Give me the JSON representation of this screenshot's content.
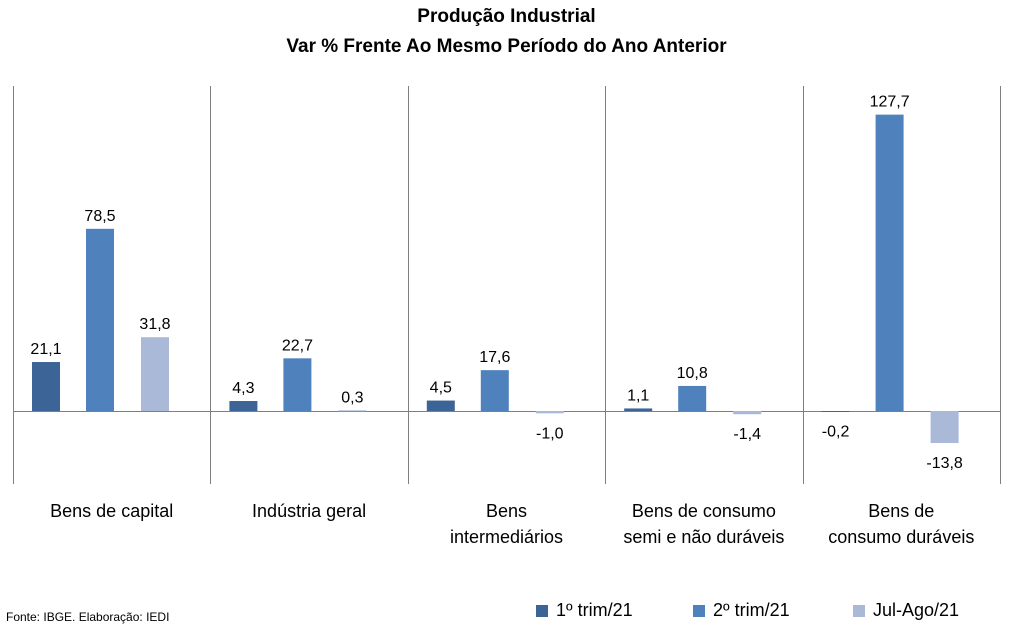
{
  "chart_data": {
    "type": "bar",
    "title": "Produção Industrial",
    "subtitle": "Var % Frente Ao Mesmo Período do Ano Anterior",
    "categories": [
      [
        "Bens de capital"
      ],
      [
        "Indústria geral"
      ],
      [
        "Bens",
        "intermediários"
      ],
      [
        "Bens de consumo",
        "semi e não duráveis"
      ],
      [
        "Bens de",
        "consumo duráveis"
      ]
    ],
    "series": [
      {
        "name": "1º trim/21",
        "color": "#3c6496",
        "values": [
          21.1,
          4.3,
          4.5,
          1.1,
          -0.2
        ],
        "labels": [
          "21,1",
          "4,3",
          "4,5",
          "1,1",
          "-0,2"
        ]
      },
      {
        "name": "2º trim/21",
        "color": "#4f81bd",
        "values": [
          78.5,
          22.7,
          17.6,
          10.8,
          127.7
        ],
        "labels": [
          "78,5",
          "22,7",
          "17,6",
          "10,8",
          "127,7"
        ]
      },
      {
        "name": "Jul-Ago/21",
        "color": "#aab9d7",
        "values": [
          31.8,
          0.3,
          -1.0,
          -1.4,
          -13.8
        ],
        "labels": [
          "31,8",
          "0,3",
          "-1,0",
          "-1,4",
          "-13,8"
        ]
      }
    ],
    "ylim": [
      -30,
      140
    ],
    "grid": false,
    "legend": "bottom-right"
  },
  "source": "Fonte: IBGE. Elaboração: IEDI"
}
